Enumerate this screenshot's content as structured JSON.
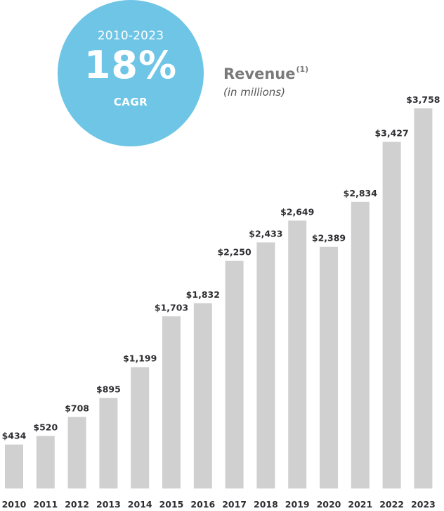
{
  "callout": {
    "period": "2010-2023",
    "value": "18%",
    "label": "CAGR",
    "color": "#6ec5e6"
  },
  "chart_data": {
    "type": "bar",
    "title": "Revenue",
    "title_footnote": "(1)",
    "subtitle": "(in millions)",
    "categories": [
      "2010",
      "2011",
      "2012",
      "2013",
      "2014",
      "2015",
      "2016",
      "2017",
      "2018",
      "2019",
      "2020",
      "2021",
      "2022",
      "2023"
    ],
    "values": [
      434,
      520,
      708,
      895,
      1199,
      1703,
      1832,
      2250,
      2433,
      2649,
      2389,
      2834,
      3427,
      3758
    ],
    "data_labels": [
      "$434",
      "$520",
      "$708",
      "$895",
      "$1,199",
      "$1,703",
      "$1,832",
      "$2,250",
      "$2,433",
      "$2,649",
      "$2,389",
      "$2,834",
      "$3,427",
      "$3,758"
    ],
    "bar_color": "#d0d0d0",
    "ylim": [
      0,
      4000
    ],
    "grid": false,
    "legend": "none"
  }
}
